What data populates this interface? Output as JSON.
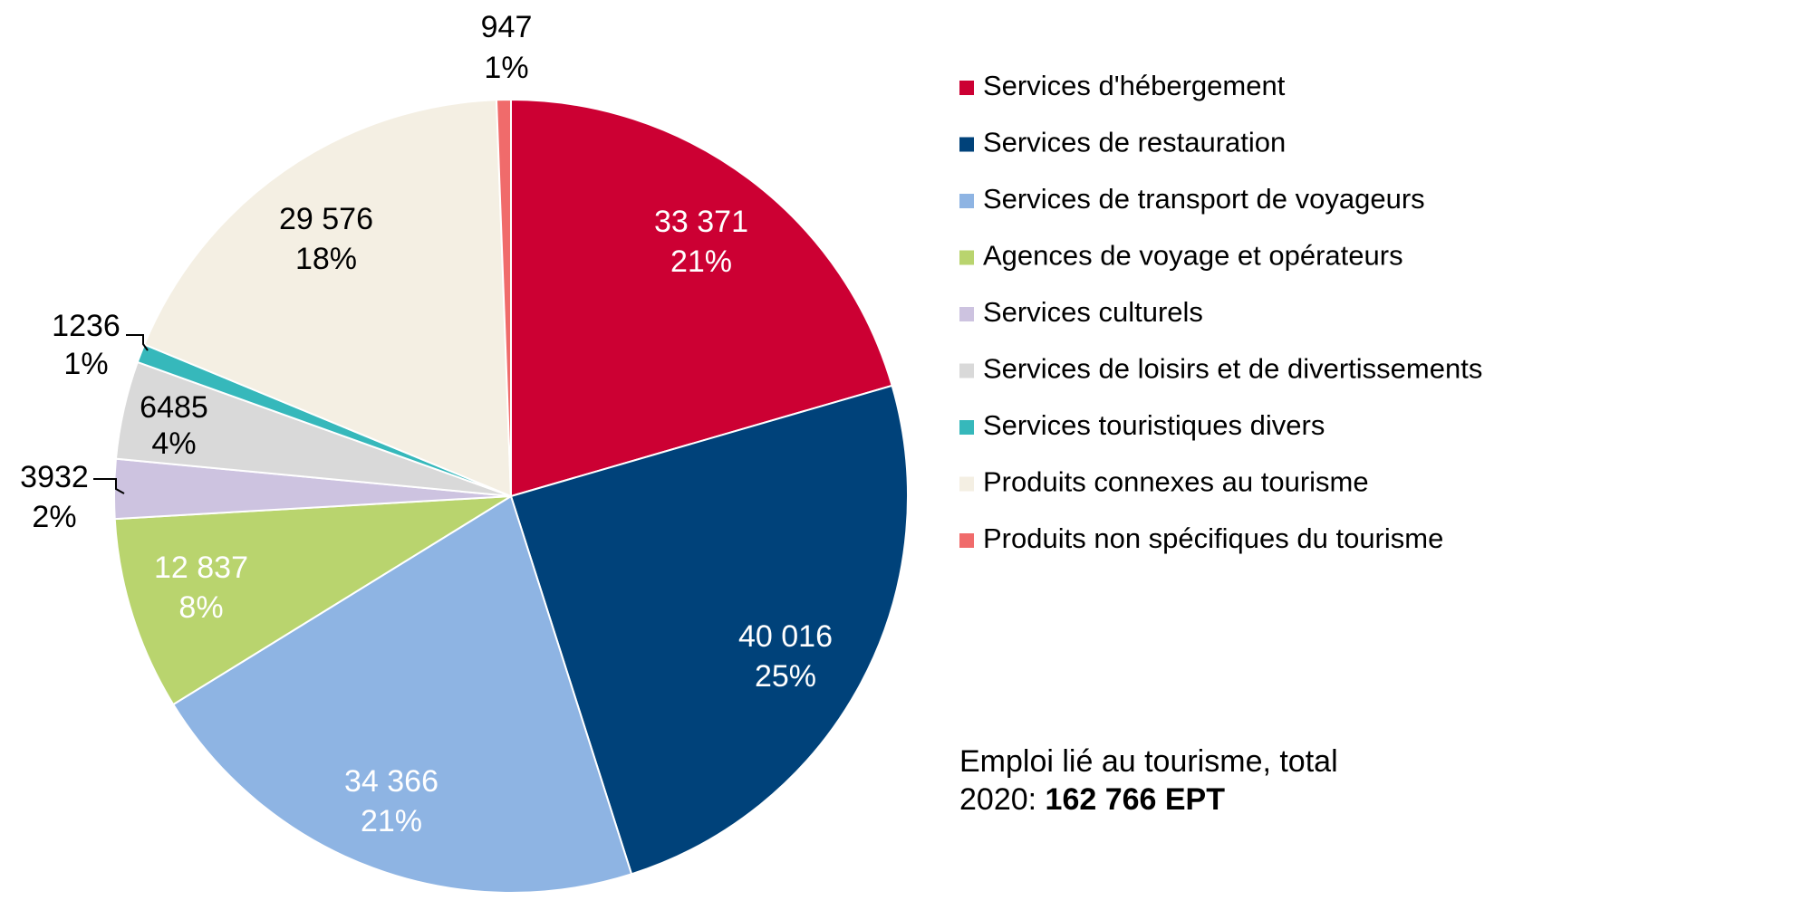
{
  "chart_data": {
    "type": "pie",
    "slices": [
      {
        "name": "Services d'hébergement",
        "value": 33371,
        "value_label": "33 371",
        "percent_label": "21%",
        "color": "#cc0033",
        "label_color": "#ffffff"
      },
      {
        "name": "Services de restauration",
        "value": 40016,
        "value_label": "40 016",
        "percent_label": "25%",
        "color": "#00427a",
        "label_color": "#ffffff"
      },
      {
        "name": "Services de transport de voyageurs",
        "value": 34366,
        "value_label": "34 366",
        "percent_label": "21%",
        "color": "#8eb4e3",
        "label_color": "#ffffff"
      },
      {
        "name": "Agences de voyage et opérateurs",
        "value": 12837,
        "value_label": "12 837",
        "percent_label": "8%",
        "color": "#b9d46e",
        "label_color": "#ffffff"
      },
      {
        "name": "Services culturels",
        "value": 3932,
        "value_label": "3932",
        "percent_label": "2%",
        "color": "#cdc3e0",
        "label_color": "#000000"
      },
      {
        "name": "Services de loisirs et de divertissements",
        "value": 6485,
        "value_label": "6485",
        "percent_label": "4%",
        "color": "#d9d9d9",
        "label_color": "#000000"
      },
      {
        "name": "Services touristiques divers",
        "value": 1236,
        "value_label": "1236",
        "percent_label": "1%",
        "color": "#36b8bb",
        "label_color": "#000000"
      },
      {
        "name": "Produits connexes au tourisme",
        "value": 29576,
        "value_label": "29 576",
        "percent_label": "18%",
        "color": "#f4efe3",
        "label_color": "#000000"
      },
      {
        "name": "Produits non spécifiques du tourisme",
        "value": 947,
        "value_label": "947",
        "percent_label": "1%",
        "color": "#f06b6b",
        "label_color": "#000000"
      }
    ]
  },
  "note": {
    "line1": "Emploi lié au tourisme, total",
    "year_prefix": "2020: ",
    "total": "162 766 EPT"
  }
}
